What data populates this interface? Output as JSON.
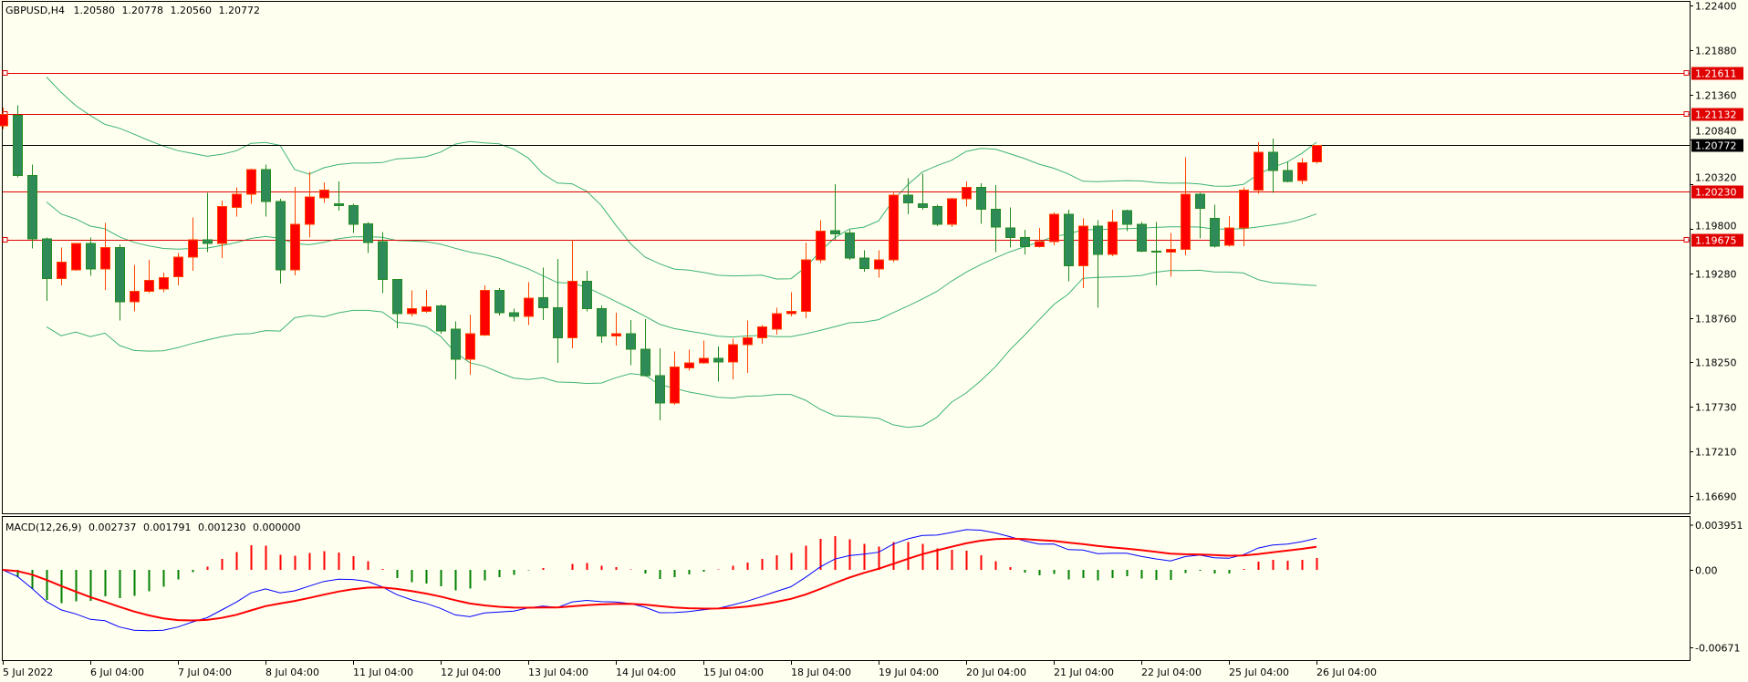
{
  "header": {
    "symbol_timeframe": "GBPUSD,H4",
    "open": "1.20580",
    "high": "1.20778",
    "low": "1.20560",
    "close": "1.20772"
  },
  "macd_header": {
    "label": "MACD(12,26,9)",
    "v1": "0.002737",
    "v2": "0.001791",
    "v3": "0.001230",
    "v4": "0.000000"
  },
  "colors": {
    "background": "#FFFFF0",
    "bull_fill": "#FF0000",
    "bull_line": "#FF4500",
    "bear_fill": "#2E8B57",
    "bear_line": "#228B22",
    "bands": "#3CB371",
    "hline": "#E00000",
    "bid_line": "#000000",
    "macd_main": "#0000FF",
    "macd_signal": "#FF0000",
    "hist_pos": "#FF0000",
    "hist_neg": "#008000"
  },
  "chart_data": [
    {
      "type": "candlestick",
      "title": "GBPUSD,H4",
      "ylim": [
        1.1669,
        1.224
      ],
      "price_ticks": [
        "1.22400",
        "1.21880",
        "1.21360",
        "1.20840",
        "1.20320",
        "1.19800",
        "1.19280",
        "1.18760",
        "1.18250",
        "1.17730",
        "1.17210",
        "1.16690"
      ],
      "time_labels": [
        "5 Jul 2022",
        "6 Jul 04:00",
        "7 Jul 04:00",
        "8 Jul 04:00",
        "11 Jul 04:00",
        "12 Jul 04:00",
        "13 Jul 04:00",
        "14 Jul 04:00",
        "15 Jul 04:00",
        "18 Jul 04:00",
        "19 Jul 04:00",
        "20 Jul 04:00",
        "21 Jul 04:00",
        "22 Jul 04:00",
        "25 Jul 04:00",
        "26 Jul 04:00"
      ],
      "bars_per_label": 6,
      "hlines": [
        {
          "price": 1.21611,
          "label": "1.21611",
          "left_marker": true,
          "right_marker": true
        },
        {
          "price": 1.21132,
          "label": "1.21132",
          "left_marker": true,
          "right_marker": true
        },
        {
          "price": 1.2023,
          "label": "1.20230",
          "left_marker": false,
          "right_marker": false
        },
        {
          "price": 1.19675,
          "label": "1.19675",
          "left_marker": true,
          "right_marker": true
        }
      ],
      "bid": {
        "price": 1.20772,
        "label": "1.20772"
      },
      "indicator": "Bollinger Bands (20, 2)",
      "ohlc": [
        [
          1.21,
          1.2121,
          1.2096,
          1.2113
        ],
        [
          1.2112,
          1.2124,
          1.204,
          1.2042
        ],
        [
          1.2042,
          1.2055,
          1.1957,
          1.1968
        ],
        [
          1.1968,
          1.197,
          1.1896,
          1.1922
        ],
        [
          1.1922,
          1.1958,
          1.1914,
          1.1941
        ],
        [
          1.1932,
          1.1963,
          1.1931,
          1.1963
        ],
        [
          1.1963,
          1.197,
          1.1925,
          1.1933
        ],
        [
          1.1933,
          1.1987,
          1.1909,
          1.1958
        ],
        [
          1.1958,
          1.1962,
          1.1873,
          1.1895
        ],
        [
          1.1895,
          1.1938,
          1.1884,
          1.1907
        ],
        [
          1.1907,
          1.1944,
          1.1905,
          1.192
        ],
        [
          1.191,
          1.1929,
          1.1906,
          1.1923
        ],
        [
          1.1924,
          1.1952,
          1.1914,
          1.1947
        ],
        [
          1.1947,
          1.1993,
          1.1931,
          1.1967
        ],
        [
          1.1967,
          1.2022,
          1.1953,
          1.1963
        ],
        [
          1.1963,
          1.2013,
          1.1946,
          1.2006
        ],
        [
          1.2005,
          1.2028,
          1.1994,
          1.202
        ],
        [
          1.202,
          1.205,
          1.2009,
          1.2049
        ],
        [
          1.2049,
          1.2055,
          1.1994,
          1.2012
        ],
        [
          1.2012,
          1.2015,
          1.1916,
          1.1932
        ],
        [
          1.1932,
          1.2029,
          1.1926,
          1.1985
        ],
        [
          1.1985,
          1.2046,
          1.197,
          1.2017
        ],
        [
          1.2016,
          1.2034,
          1.201,
          1.2025
        ],
        [
          1.2009,
          1.2035,
          1.2001,
          1.2007
        ],
        [
          1.2007,
          1.2009,
          1.1975,
          1.1985
        ],
        [
          1.1986,
          1.1988,
          1.1952,
          1.1964
        ],
        [
          1.1965,
          1.1976,
          1.1905,
          1.1921
        ],
        [
          1.1921,
          1.1921,
          1.1864,
          1.1881
        ],
        [
          1.1881,
          1.1908,
          1.1878,
          1.1887
        ],
        [
          1.1884,
          1.1909,
          1.1882,
          1.1889
        ],
        [
          1.189,
          1.1892,
          1.1858,
          1.1861
        ],
        [
          1.1863,
          1.1872,
          1.1805,
          1.1828
        ],
        [
          1.1828,
          1.188,
          1.181,
          1.1858
        ],
        [
          1.1856,
          1.1914,
          1.1855,
          1.1908
        ],
        [
          1.1908,
          1.1911,
          1.1879,
          1.1882
        ],
        [
          1.1882,
          1.1887,
          1.1872,
          1.1878
        ],
        [
          1.1878,
          1.1918,
          1.1868,
          1.1899
        ],
        [
          1.19,
          1.1935,
          1.1874,
          1.1888
        ],
        [
          1.1888,
          1.1945,
          1.1824,
          1.1853
        ],
        [
          1.1853,
          1.1967,
          1.1841,
          1.1919
        ],
        [
          1.1919,
          1.1931,
          1.1884,
          1.1887
        ],
        [
          1.1887,
          1.1891,
          1.1847,
          1.1855
        ],
        [
          1.1855,
          1.1882,
          1.1844,
          1.1858
        ],
        [
          1.1858,
          1.1874,
          1.1821,
          1.184
        ],
        [
          1.184,
          1.1875,
          1.1808,
          1.1809
        ],
        [
          1.1809,
          1.1841,
          1.1757,
          1.1777
        ],
        [
          1.1777,
          1.1837,
          1.1775,
          1.1819
        ],
        [
          1.1818,
          1.1839,
          1.1815,
          1.1824
        ],
        [
          1.1824,
          1.185,
          1.1823,
          1.1829
        ],
        [
          1.1829,
          1.1843,
          1.1802,
          1.1825
        ],
        [
          1.1825,
          1.1852,
          1.1805,
          1.1845
        ],
        [
          1.1845,
          1.1873,
          1.1812,
          1.1853
        ],
        [
          1.1853,
          1.1868,
          1.1846,
          1.1866
        ],
        [
          1.1863,
          1.1888,
          1.1857,
          1.1881
        ],
        [
          1.1881,
          1.1906,
          1.1878,
          1.1884
        ],
        [
          1.1884,
          1.1964,
          1.1876,
          1.1944
        ],
        [
          1.1944,
          1.199,
          1.194,
          1.1977
        ],
        [
          1.1978,
          1.2032,
          1.1967,
          1.1974
        ],
        [
          1.1975,
          1.1979,
          1.1944,
          1.1946
        ],
        [
          1.1946,
          1.1955,
          1.193,
          1.1934
        ],
        [
          1.1933,
          1.1955,
          1.1923,
          1.1944
        ],
        [
          1.1944,
          1.2022,
          1.1941,
          1.2019
        ],
        [
          1.2019,
          1.2039,
          1.1997,
          1.201
        ],
        [
          1.2009,
          1.2044,
          1.2002,
          1.2005
        ],
        [
          1.2006,
          1.2008,
          1.1983,
          1.1985
        ],
        [
          1.1985,
          1.2016,
          1.1982,
          1.2015
        ],
        [
          1.2015,
          1.2035,
          1.2006,
          1.2028
        ],
        [
          1.2028,
          1.2033,
          1.1986,
          1.2003
        ],
        [
          1.2003,
          1.2031,
          1.1953,
          1.1982
        ],
        [
          1.1981,
          1.2005,
          1.1958,
          1.197
        ],
        [
          1.197,
          1.1979,
          1.195,
          1.1959
        ],
        [
          1.1959,
          1.1981,
          1.1958,
          1.1965
        ],
        [
          1.1965,
          1.1999,
          1.1961,
          1.1997
        ],
        [
          1.1997,
          1.2002,
          1.1919,
          1.1937
        ],
        [
          1.1937,
          1.1992,
          1.1911,
          1.1983
        ],
        [
          1.1983,
          1.199,
          1.1888,
          1.195
        ],
        [
          1.195,
          1.2002,
          1.1948,
          1.1988
        ],
        [
          1.2001,
          1.2002,
          1.1977,
          1.1985
        ],
        [
          1.1985,
          1.1988,
          1.1953,
          1.1954
        ],
        [
          1.1954,
          1.1988,
          1.1914,
          1.1954
        ],
        [
          1.1953,
          1.1975,
          1.1924,
          1.1956
        ],
        [
          1.1956,
          1.2063,
          1.1949,
          1.202
        ],
        [
          1.202,
          1.2022,
          1.1969,
          1.2004
        ],
        [
          1.1992,
          1.2008,
          1.1958,
          1.196
        ],
        [
          1.1961,
          1.1995,
          1.1959,
          1.1981
        ],
        [
          1.1981,
          1.2028,
          1.196,
          1.2025
        ],
        [
          1.2025,
          1.2081,
          1.2021,
          1.2069
        ],
        [
          1.2069,
          1.2085,
          1.2022,
          1.2048
        ],
        [
          1.2048,
          1.2058,
          1.2034,
          1.2035
        ],
        [
          1.2036,
          1.2062,
          1.2032,
          1.2057
        ],
        [
          1.2058,
          1.20778,
          1.2056,
          1.20772
        ]
      ]
    },
    {
      "type": "line",
      "title": "MACD(12,26,9)",
      "ylim": [
        -0.00671,
        0.003951
      ],
      "y_ticks": [
        "0.003951",
        "0.00",
        "-0.00671"
      ],
      "y_tick_values": [
        0.003951,
        0,
        -0.00671
      ],
      "series": [
        {
          "name": "MACD main"
        },
        {
          "name": "Signal"
        },
        {
          "name": "Histogram"
        }
      ]
    }
  ]
}
